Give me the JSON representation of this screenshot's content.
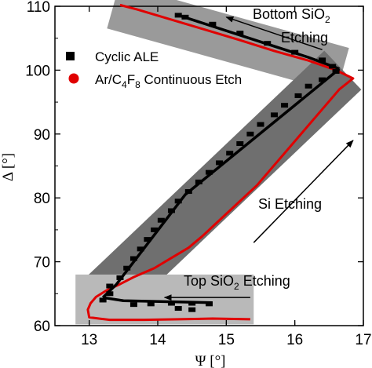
{
  "chart_data": {
    "type": "line",
    "xlabel": "Ψ [°]",
    "ylabel": "Δ [°]",
    "xlim": [
      12.5,
      17.0
    ],
    "ylim": [
      60,
      110
    ],
    "x_ticks": [
      13,
      14,
      15,
      16,
      17
    ],
    "y_ticks": [
      60,
      70,
      80,
      90,
      100,
      110
    ],
    "legend": {
      "position": "top-left"
    },
    "series": [
      {
        "name": "Cyclic ALE",
        "marker": "square",
        "color": "#000000",
        "points": [
          [
            13.65,
            63.3
          ],
          [
            13.9,
            63.4
          ],
          [
            14.2,
            63.5
          ],
          [
            14.5,
            63.5
          ],
          [
            14.75,
            63.4
          ],
          [
            14.3,
            62.7
          ],
          [
            14.5,
            62.5
          ],
          [
            13.2,
            64.0
          ],
          [
            13.3,
            65.0
          ],
          [
            13.3,
            66.2
          ],
          [
            13.45,
            67.5
          ],
          [
            13.55,
            69.0
          ],
          [
            13.65,
            70.5
          ],
          [
            13.75,
            72.0
          ],
          [
            13.85,
            73.5
          ],
          [
            13.95,
            75.0
          ],
          [
            14.05,
            76.5
          ],
          [
            14.2,
            78.0
          ],
          [
            14.3,
            79.5
          ],
          [
            14.45,
            81.0
          ],
          [
            14.6,
            82.5
          ],
          [
            14.75,
            84.0
          ],
          [
            14.9,
            85.5
          ],
          [
            15.05,
            87.0
          ],
          [
            15.2,
            88.5
          ],
          [
            15.35,
            90.0
          ],
          [
            15.5,
            91.5
          ],
          [
            15.7,
            93.0
          ],
          [
            15.85,
            94.5
          ],
          [
            16.05,
            96.0
          ],
          [
            16.2,
            97.5
          ],
          [
            16.4,
            98.5
          ],
          [
            16.6,
            99.8
          ],
          [
            16.55,
            100.6
          ],
          [
            16.4,
            101.6
          ],
          [
            16.0,
            102.8
          ],
          [
            15.6,
            104.2
          ],
          [
            15.2,
            105.8
          ],
          [
            14.8,
            107.2
          ],
          [
            14.4,
            108.3
          ],
          [
            14.3,
            108.6
          ]
        ],
        "segments": [
          [
            [
              13.2,
              64.4
            ],
            [
              13.4,
              66.5
            ],
            [
              14.4,
              80.5
            ],
            [
              16.65,
              100.2
            ]
          ],
          [
            [
              16.65,
              100.2
            ],
            [
              16.2,
              102.0
            ],
            [
              14.3,
              108.6
            ]
          ],
          [
            [
              13.2,
              64.4
            ],
            [
              13.5,
              63.9
            ],
            [
              14.8,
              63.6
            ]
          ]
        ]
      },
      {
        "name": "Ar/C4F8 Continuous Etch",
        "marker": "circle",
        "color": "#e00000",
        "points": [
          [
            15.35,
            61.0
          ],
          [
            14.8,
            61.1
          ],
          [
            14.3,
            61.0
          ],
          [
            13.8,
            60.9
          ],
          [
            13.3,
            60.9
          ],
          [
            13.0,
            61.3
          ],
          [
            12.98,
            62.5
          ],
          [
            13.02,
            63.5
          ],
          [
            13.1,
            64.5
          ],
          [
            13.25,
            65.5
          ],
          [
            13.45,
            66.5
          ],
          [
            13.65,
            67.6
          ],
          [
            13.95,
            69.0
          ],
          [
            14.2,
            70.6
          ],
          [
            14.45,
            72.2
          ],
          [
            14.65,
            74.0
          ],
          [
            14.85,
            76.0
          ],
          [
            15.05,
            78.0
          ],
          [
            15.25,
            80.0
          ],
          [
            15.45,
            82.0
          ],
          [
            15.65,
            84.5
          ],
          [
            15.85,
            87.0
          ],
          [
            16.05,
            89.5
          ],
          [
            16.25,
            92.0
          ],
          [
            16.45,
            94.5
          ],
          [
            16.65,
            97.0
          ],
          [
            16.85,
            98.7
          ],
          [
            16.6,
            100.0
          ],
          [
            16.2,
            101.5
          ],
          [
            15.7,
            103.0
          ],
          [
            15.2,
            104.7
          ],
          [
            14.7,
            106.3
          ],
          [
            14.2,
            107.9
          ],
          [
            13.7,
            109.5
          ],
          [
            13.45,
            110.2
          ]
        ]
      }
    ],
    "annotations": [
      {
        "text": "Bottom SiO",
        "sub": "2",
        "text2": "Etching"
      },
      {
        "text": "Si Etching"
      },
      {
        "text": "Top SiO",
        "sub": "2",
        "text2": " Etching"
      }
    ],
    "legend_entries": [
      {
        "text": "Cyclic ALE"
      },
      {
        "pre": "Ar/C",
        "sub1": "4",
        "mid": "F",
        "sub2": "8",
        "post": " Continuous Etch"
      }
    ],
    "highlight_bands": [
      {
        "label": "bottom-band",
        "from": [
          13.35,
          110.0
        ],
        "to": [
          16.7,
          100.0
        ],
        "half_width_deg": 1.2
      },
      {
        "label": "si-band",
        "from": [
          13.2,
          64.3
        ],
        "to": [
          16.7,
          100.0
        ],
        "half_width_deg": 1.4
      },
      {
        "label": "top-band",
        "x_range": [
          12.8,
          15.4
        ],
        "y_range": [
          60.2,
          68.0
        ]
      }
    ]
  }
}
